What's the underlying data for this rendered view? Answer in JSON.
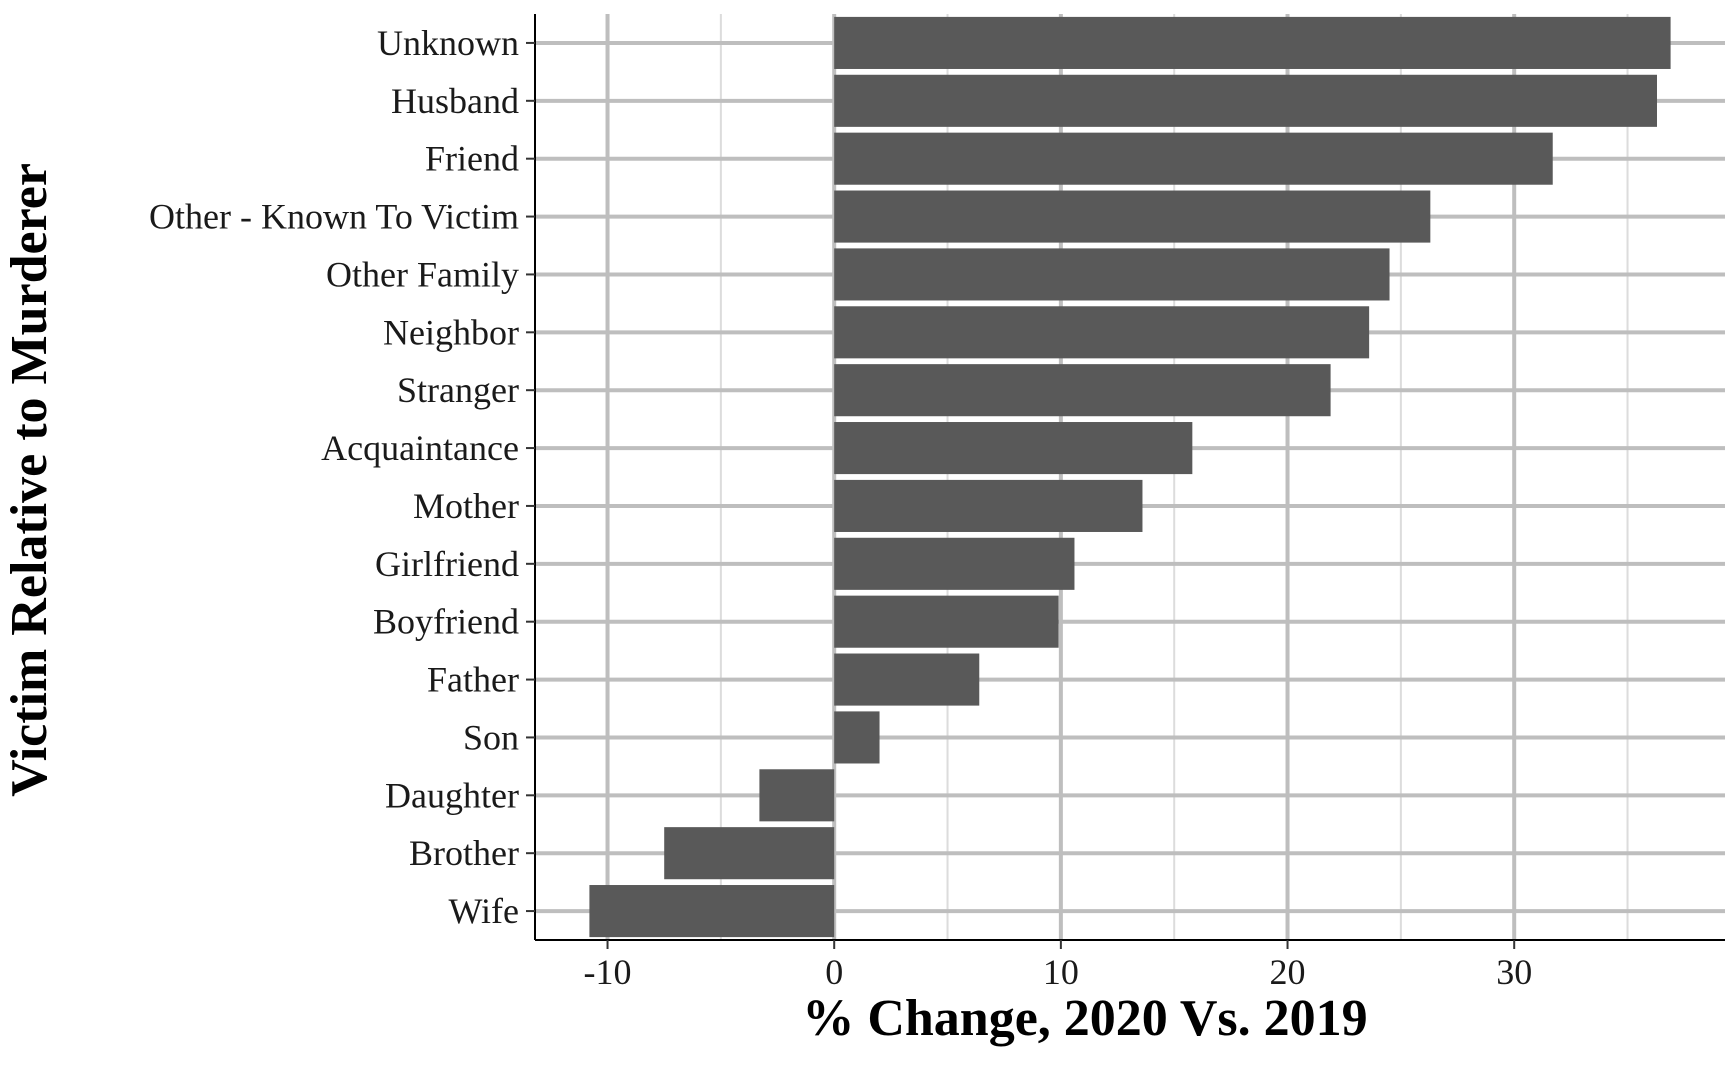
{
  "chart_data": {
    "type": "bar",
    "orientation": "horizontal",
    "title": "",
    "xlabel": "% Change, 2020 Vs. 2019",
    "ylabel": "Victim Relative to Murderer",
    "categories": [
      "Unknown",
      "Husband",
      "Friend",
      "Other - Known To Victim",
      "Other Family",
      "Neighbor",
      "Stranger",
      "Acquaintance",
      "Mother",
      "Girlfriend",
      "Boyfriend",
      "Father",
      "Son",
      "Daughter",
      "Brother",
      "Wife"
    ],
    "values": [
      36.9,
      36.3,
      31.7,
      26.3,
      24.5,
      23.6,
      21.9,
      15.8,
      13.6,
      10.6,
      9.9,
      6.4,
      2.0,
      -3.3,
      -7.5,
      -10.8
    ],
    "xlim": [
      -13.2,
      39.3
    ],
    "xticks": [
      -10,
      0,
      10,
      20,
      30
    ],
    "xtick_labels": [
      "-10",
      "0",
      "10",
      "20",
      "30"
    ],
    "grid": true,
    "legend": "none",
    "colors": {
      "bar": "#595959",
      "grid_major": "#bebebe",
      "grid_minor": "#dcdcdc",
      "axis": "#000000"
    }
  }
}
